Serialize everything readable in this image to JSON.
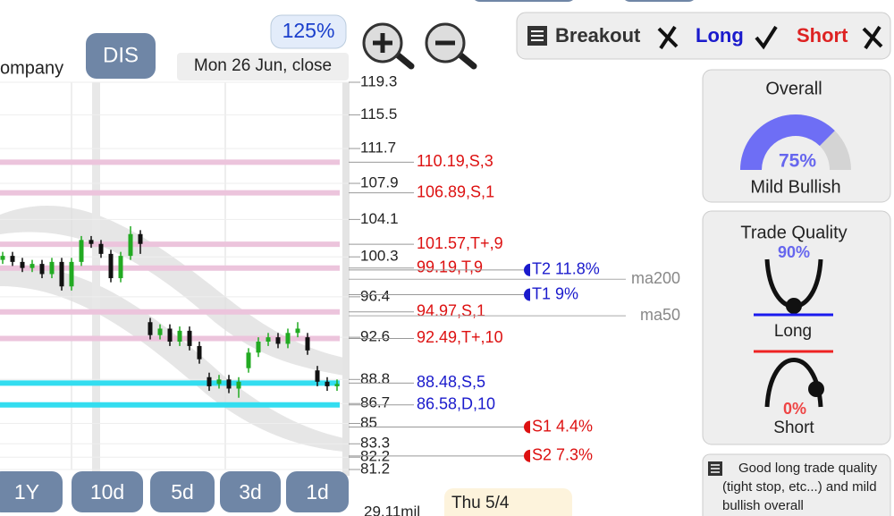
{
  "header": {
    "company": "ompany",
    "ticker": "DIS",
    "zoom": "125%",
    "date": "Mon 26 Jun, close"
  },
  "signals": {
    "breakout": "Breakout",
    "long": "Long",
    "short": "Short"
  },
  "chart_data": {
    "type": "candlestick",
    "log_scale": true,
    "ylim": [
      81.2,
      119.3
    ],
    "yticks": [
      119.3,
      115.5,
      111.7,
      107.9,
      104.1,
      100.3,
      96.4,
      92.6,
      88.8,
      86.7,
      85,
      83.3,
      82.2,
      81.2
    ],
    "grid": true,
    "up_color": "#22aa22",
    "down_color": "#111111",
    "open": [
      100.0,
      100.4,
      99.8,
      99.2,
      99.6,
      98.6,
      99.8,
      97.4,
      99.8,
      102.0,
      101.6,
      100.6,
      98.2,
      100.4,
      102.6,
      94.0,
      92.8,
      93.4,
      92.2,
      93.2,
      91.8,
      89.0,
      88.4,
      88.8,
      88.0,
      89.8,
      91.2,
      92.2,
      92.6,
      92.0,
      93.0,
      92.6,
      89.6,
      88.6,
      88.2
    ],
    "high": [
      100.8,
      100.8,
      100.2,
      100.0,
      100.0,
      100.2,
      100.2,
      100.2,
      102.4,
      102.4,
      102.0,
      101.0,
      100.8,
      103.4,
      103.0,
      94.4,
      93.8,
      93.8,
      93.6,
      93.6,
      92.2,
      89.4,
      89.2,
      89.2,
      89.0,
      91.6,
      92.6,
      93.0,
      93.0,
      93.4,
      94.0,
      93.0,
      90.0,
      89.0,
      88.8
    ],
    "low": [
      99.6,
      99.4,
      98.8,
      98.8,
      98.2,
      98.2,
      97.0,
      97.0,
      99.4,
      101.2,
      100.2,
      97.8,
      97.8,
      100.0,
      100.6,
      92.4,
      92.4,
      91.8,
      91.8,
      91.4,
      90.2,
      87.8,
      88.0,
      87.6,
      87.2,
      89.4,
      90.8,
      91.8,
      91.6,
      91.6,
      92.6,
      91.0,
      88.2,
      87.8,
      87.8
    ],
    "close": [
      100.4,
      99.8,
      99.2,
      99.6,
      98.6,
      99.8,
      97.4,
      99.8,
      102.0,
      101.6,
      100.6,
      98.2,
      100.4,
      102.6,
      101.6,
      92.8,
      93.4,
      92.2,
      93.2,
      91.8,
      90.6,
      88.2,
      88.8,
      88.0,
      88.6,
      91.2,
      92.2,
      92.6,
      92.0,
      93.0,
      93.4,
      91.4,
      88.6,
      88.2,
      88.4
    ],
    "levels": [
      {
        "value": 110.19,
        "label": "110.19,S,3",
        "color": "#dd1111",
        "line_color": "#ecc4dc"
      },
      {
        "value": 106.89,
        "label": "106.89,S,1",
        "color": "#dd1111",
        "line_color": "#ecc4dc"
      },
      {
        "value": 101.57,
        "label": "101.57,T+,9",
        "color": "#dd1111",
        "line_color": "#ecc4dc"
      },
      {
        "value": 99.19,
        "label": "99.19,T,9",
        "color": "#dd1111",
        "line_color": "#ecc4dc"
      },
      {
        "value": 94.97,
        "label": "94.97,S,1",
        "color": "#dd1111",
        "line_color": "#ecc4dc"
      },
      {
        "value": 92.49,
        "label": "92.49,T+,10",
        "color": "#dd1111",
        "line_color": "#ecc4dc"
      },
      {
        "value": 88.48,
        "label": "88.48,S,5",
        "color": "#1a1acc",
        "line_color": "#33ddf0"
      },
      {
        "value": 86.58,
        "label": "86.58,D,10",
        "color": "#1a1acc",
        "line_color": "#33ddf0"
      }
    ],
    "targets": [
      {
        "price": 99.0,
        "label": "T2 11.8%",
        "color": "#1a1acc"
      },
      {
        "price": 96.6,
        "label": "T1 9%",
        "color": "#1a1acc"
      },
      {
        "price": 84.7,
        "label": "S1 4.4%",
        "color": "#dd1111"
      },
      {
        "price": 82.3,
        "label": "S2 7.3%",
        "color": "#dd1111"
      }
    ],
    "moving_averages": [
      {
        "price": 98.1,
        "label": "ma200"
      },
      {
        "price": 94.6,
        "label": "ma50"
      }
    ],
    "volume_label": "29.11mil",
    "date_tooltip": "Thu 5/4"
  },
  "periods": [
    "1Y",
    "10d",
    "5d",
    "3d",
    "1d"
  ],
  "overall": {
    "title": "Overall",
    "value": 75,
    "value_label": "75%",
    "verdict": "Mild Bullish"
  },
  "trade_quality": {
    "title": "Trade Quality",
    "long": {
      "value": 90,
      "value_label": "90%",
      "label": "Long"
    },
    "short": {
      "value": 0,
      "value_label": "0%",
      "label": "Short"
    }
  },
  "note": "Good long trade quality (tight stop, etc...) and mild bullish overall"
}
